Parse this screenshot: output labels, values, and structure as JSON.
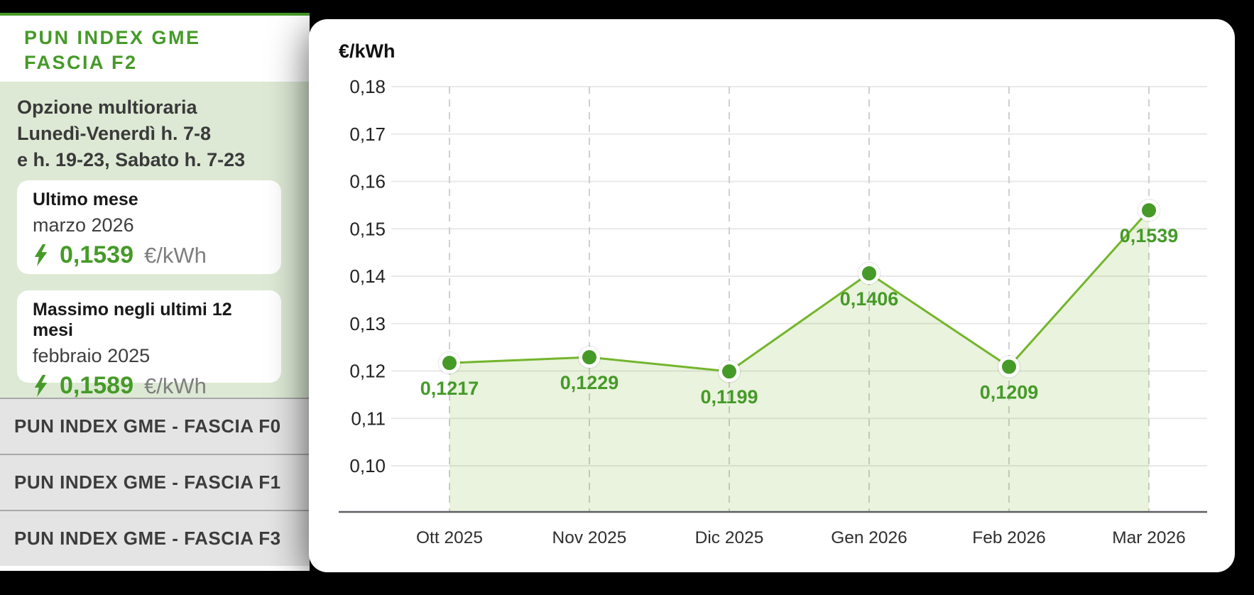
{
  "sidebar": {
    "title_line1": "PUN INDEX GME",
    "title_line2": "FASCIA F2",
    "subtitle_line1": "Opzione multioraria",
    "subtitle_line2": "Lunedì-Venerdì h. 7-8",
    "subtitle_line3": "e h. 19-23, Sabato h. 7-23",
    "cards": [
      {
        "icon": "lightning-bolt",
        "heading": "Ultimo mese",
        "period": "marzo 2026",
        "value": "0,1539",
        "unit": "€/kWh"
      },
      {
        "icon": "lightning-bolt",
        "heading": "Massimo negli ultimi 12 mesi",
        "period": "febbraio 2025",
        "value": "0,1589",
        "unit": "€/kWh"
      }
    ],
    "links": [
      "PUN INDEX GME - FASCIA F0",
      "PUN INDEX GME - FASCIA F1",
      "PUN INDEX GME - FASCIA F3"
    ]
  },
  "chart": {
    "unit_label": "€/kWh"
  },
  "chart_data": {
    "type": "area",
    "title": "",
    "xlabel": "",
    "ylabel": "€/kWh",
    "categories": [
      "Ott 2025",
      "Nov 2025",
      "Dic 2025",
      "Gen 2026",
      "Feb 2026",
      "Mar 2026"
    ],
    "values": [
      0.1217,
      0.1229,
      0.1199,
      0.1406,
      0.1209,
      0.1539
    ],
    "value_labels": [
      "0,1217",
      "0,1229",
      "0,1199",
      "0,1406",
      "0,1209",
      "0,1539"
    ],
    "ylim": [
      0.1,
      0.18
    ],
    "yticks": [
      0.18,
      0.17,
      0.16,
      0.15,
      0.14,
      0.13,
      0.12,
      0.11,
      0.1
    ],
    "ytick_labels": [
      "0,18",
      "0,17",
      "0,16",
      "0,15",
      "0,14",
      "0,13",
      "0,12",
      "0,11",
      "0,10"
    ],
    "grid": true,
    "vertical_guides": "dashed",
    "legend": false
  },
  "colors": {
    "accent_green": "#459a28",
    "line_green": "#74b52c",
    "panel_green": "#dde9d4",
    "row_gray": "#e4e4e4",
    "unit_gray": "#7e7e7e",
    "page_background": "#000000"
  }
}
